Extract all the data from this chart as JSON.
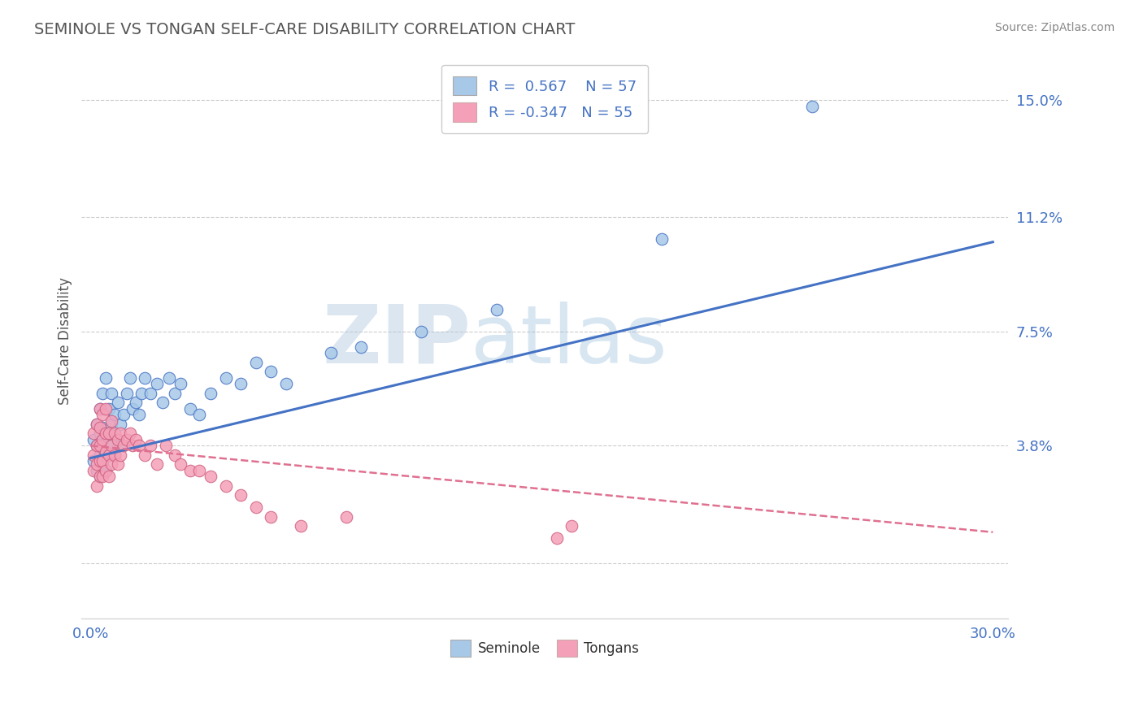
{
  "title": "SEMINOLE VS TONGAN SELF-CARE DISABILITY CORRELATION CHART",
  "source": "Source: ZipAtlas.com",
  "ylabel": "Self-Care Disability",
  "xlim": [
    -0.003,
    0.305
  ],
  "ylim": [
    -0.018,
    0.162
  ],
  "xticks": [
    0.0,
    0.3
  ],
  "xticklabels": [
    "0.0%",
    "30.0%"
  ],
  "yticks": [
    0.0,
    0.038,
    0.075,
    0.112,
    0.15
  ],
  "yticklabels": [
    "",
    "3.8%",
    "7.5%",
    "11.2%",
    "15.0%"
  ],
  "seminole_color": "#a8c8e8",
  "tongan_color": "#f4a0b8",
  "seminole_line_color": "#4472c4",
  "tongan_line_color": "#e07090",
  "seminole_R": 0.567,
  "seminole_N": 57,
  "tongan_R": -0.347,
  "tongan_N": 55,
  "grid_color": "#cccccc",
  "watermark_zip": "ZIP",
  "watermark_atlas": "atlas",
  "legend_label1": "Seminole",
  "legend_label2": "Tongans",
  "title_color": "#555555",
  "tick_color": "#4472c4",
  "background_color": "#ffffff",
  "seminole_points_x": [
    0.001,
    0.001,
    0.002,
    0.002,
    0.002,
    0.003,
    0.003,
    0.003,
    0.003,
    0.004,
    0.004,
    0.004,
    0.004,
    0.005,
    0.005,
    0.005,
    0.005,
    0.006,
    0.006,
    0.006,
    0.007,
    0.007,
    0.007,
    0.008,
    0.008,
    0.009,
    0.009,
    0.01,
    0.01,
    0.011,
    0.012,
    0.013,
    0.014,
    0.015,
    0.016,
    0.017,
    0.018,
    0.02,
    0.022,
    0.024,
    0.026,
    0.028,
    0.03,
    0.033,
    0.036,
    0.04,
    0.045,
    0.05,
    0.055,
    0.06,
    0.065,
    0.08,
    0.09,
    0.11,
    0.135,
    0.19,
    0.24
  ],
  "seminole_points_y": [
    0.033,
    0.04,
    0.03,
    0.038,
    0.045,
    0.028,
    0.035,
    0.042,
    0.05,
    0.032,
    0.038,
    0.044,
    0.055,
    0.03,
    0.036,
    0.042,
    0.06,
    0.035,
    0.04,
    0.05,
    0.038,
    0.045,
    0.055,
    0.035,
    0.048,
    0.04,
    0.052,
    0.038,
    0.045,
    0.048,
    0.055,
    0.06,
    0.05,
    0.052,
    0.048,
    0.055,
    0.06,
    0.055,
    0.058,
    0.052,
    0.06,
    0.055,
    0.058,
    0.05,
    0.048,
    0.055,
    0.06,
    0.058,
    0.065,
    0.062,
    0.058,
    0.068,
    0.07,
    0.075,
    0.082,
    0.105,
    0.148
  ],
  "tongan_points_x": [
    0.001,
    0.001,
    0.001,
    0.002,
    0.002,
    0.002,
    0.002,
    0.003,
    0.003,
    0.003,
    0.003,
    0.003,
    0.004,
    0.004,
    0.004,
    0.004,
    0.005,
    0.005,
    0.005,
    0.005,
    0.006,
    0.006,
    0.006,
    0.007,
    0.007,
    0.007,
    0.008,
    0.008,
    0.009,
    0.009,
    0.01,
    0.01,
    0.011,
    0.012,
    0.013,
    0.014,
    0.015,
    0.016,
    0.018,
    0.02,
    0.022,
    0.025,
    0.028,
    0.03,
    0.033,
    0.036,
    0.04,
    0.045,
    0.05,
    0.055,
    0.06,
    0.07,
    0.085,
    0.155,
    0.16
  ],
  "tongan_points_y": [
    0.03,
    0.035,
    0.042,
    0.025,
    0.032,
    0.038,
    0.045,
    0.028,
    0.033,
    0.038,
    0.044,
    0.05,
    0.028,
    0.033,
    0.04,
    0.048,
    0.03,
    0.036,
    0.042,
    0.05,
    0.028,
    0.035,
    0.042,
    0.032,
    0.038,
    0.046,
    0.035,
    0.042,
    0.032,
    0.04,
    0.035,
    0.042,
    0.038,
    0.04,
    0.042,
    0.038,
    0.04,
    0.038,
    0.035,
    0.038,
    0.032,
    0.038,
    0.035,
    0.032,
    0.03,
    0.03,
    0.028,
    0.025,
    0.022,
    0.018,
    0.015,
    0.012,
    0.015,
    0.008,
    0.012
  ],
  "sem_line_x0": 0.0,
  "sem_line_y0": 0.034,
  "sem_line_x1": 0.3,
  "sem_line_y1": 0.104,
  "ton_line_x0": 0.0,
  "ton_line_y0": 0.038,
  "ton_line_x1": 0.3,
  "ton_line_y1": 0.01
}
